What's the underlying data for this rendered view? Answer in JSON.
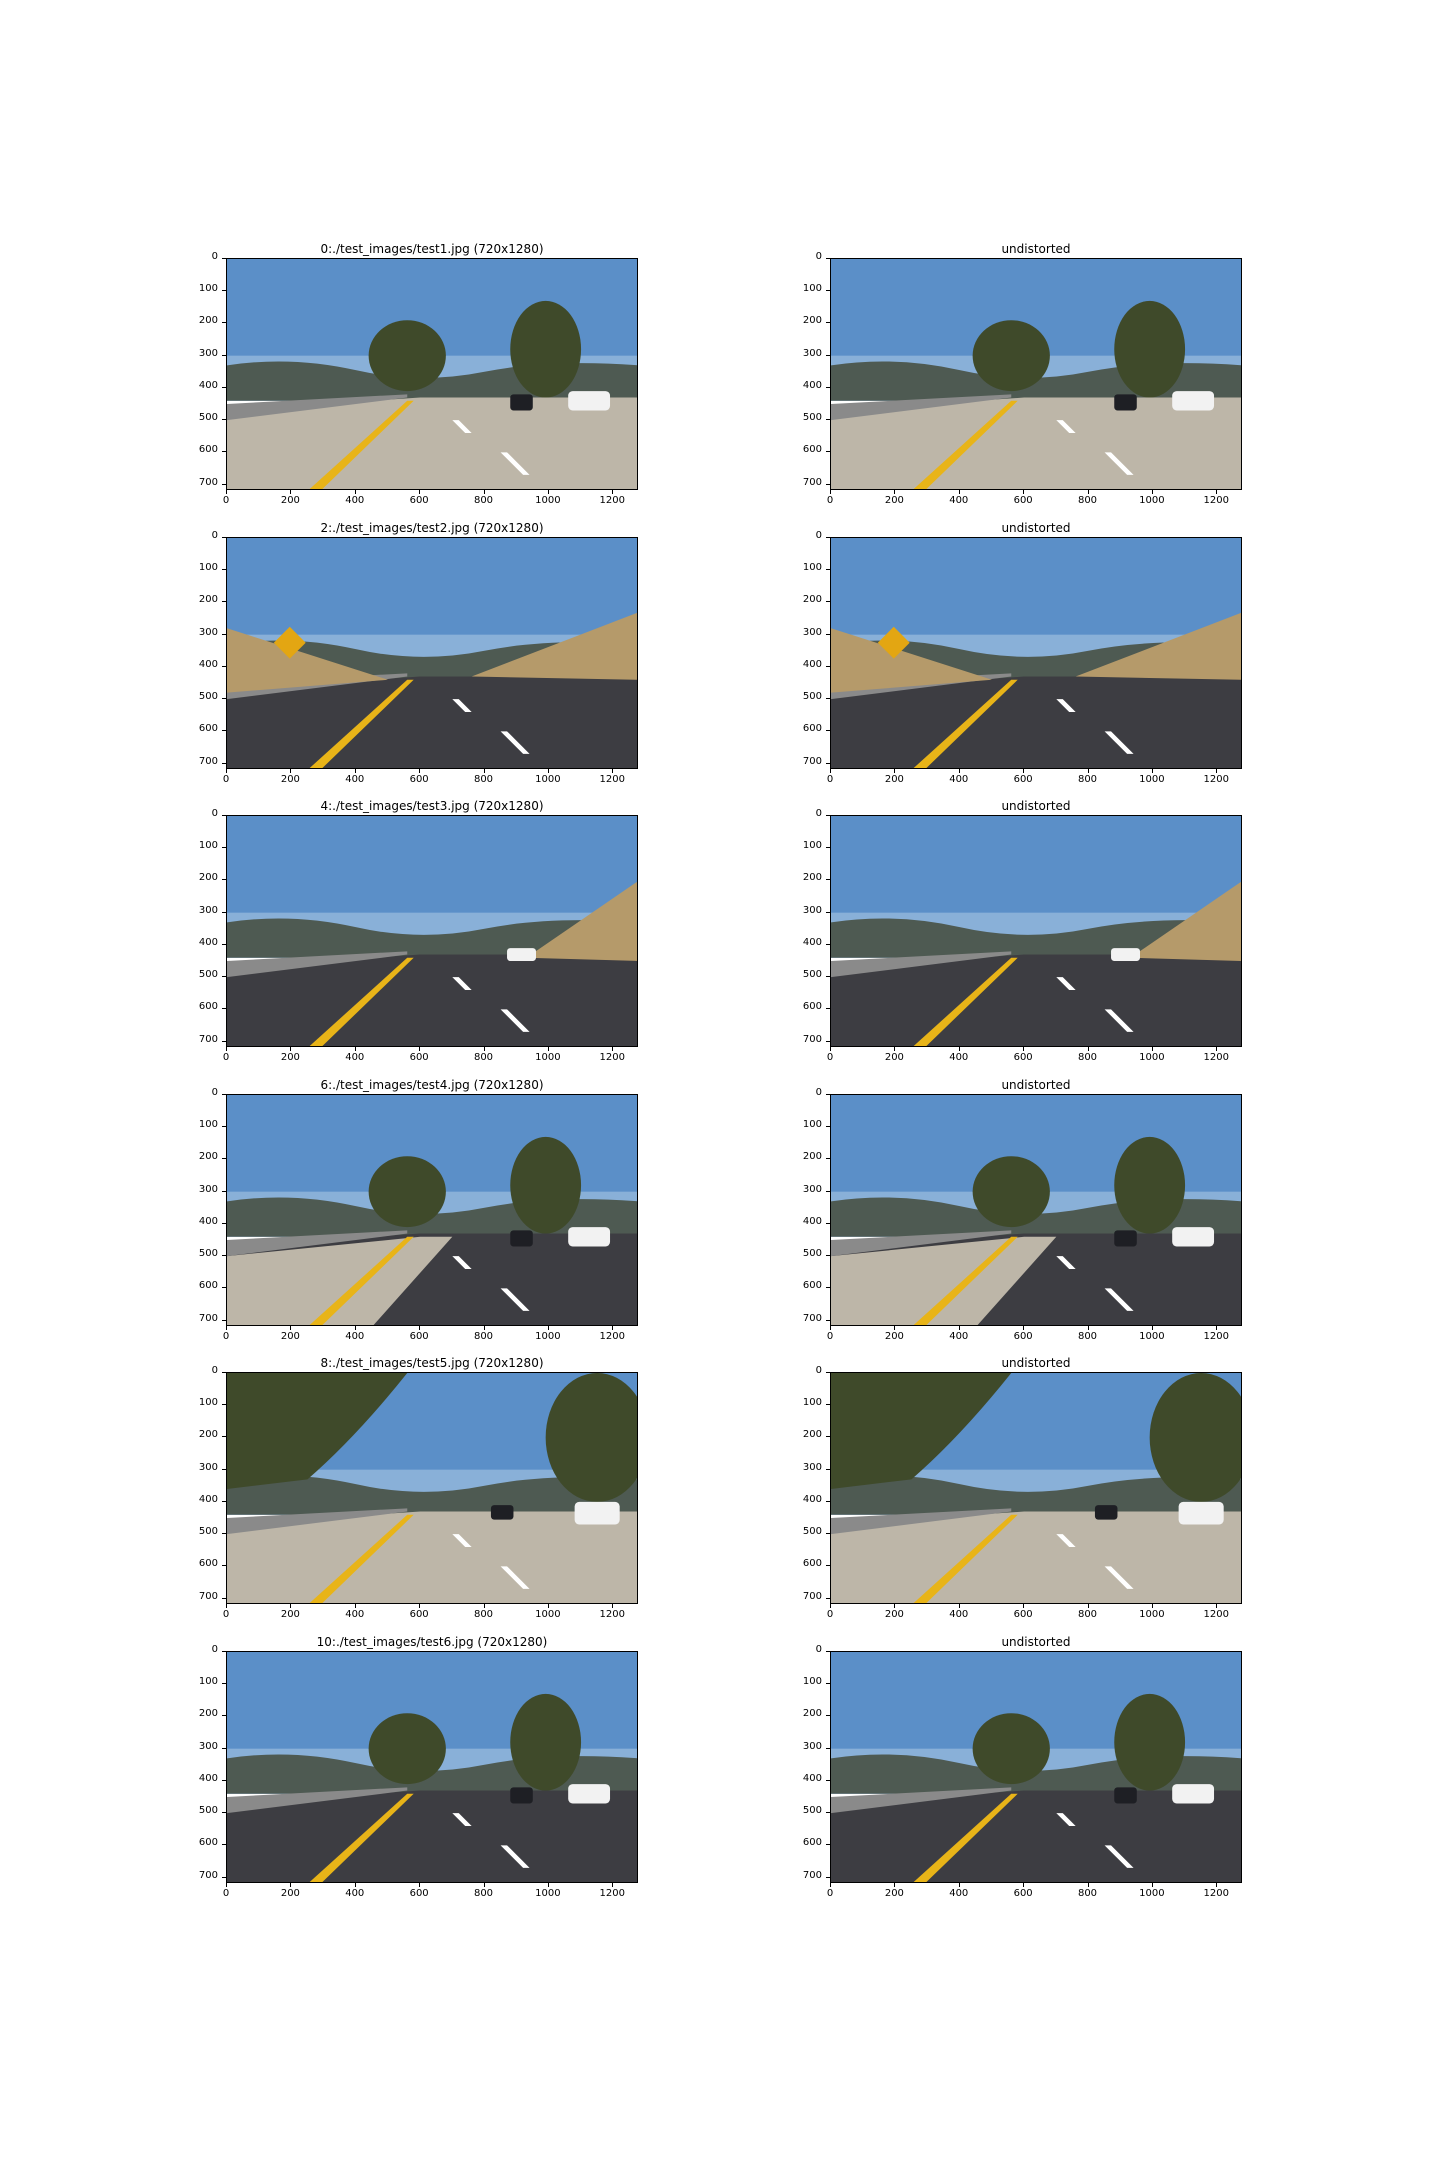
{
  "figure": {
    "panels": [
      {
        "title": "0:./test_images/test1.jpg (720x1280)",
        "scene": "test1"
      },
      {
        "title": "undistorted",
        "scene": "test1"
      },
      {
        "title": "2:./test_images/test2.jpg (720x1280)",
        "scene": "test2"
      },
      {
        "title": "undistorted",
        "scene": "test2"
      },
      {
        "title": "4:./test_images/test3.jpg (720x1280)",
        "scene": "test3"
      },
      {
        "title": "undistorted",
        "scene": "test3"
      },
      {
        "title": "6:./test_images/test4.jpg (720x1280)",
        "scene": "test4"
      },
      {
        "title": "undistorted",
        "scene": "test4"
      },
      {
        "title": "8:./test_images/test5.jpg (720x1280)",
        "scene": "test5"
      },
      {
        "title": "undistorted",
        "scene": "test5"
      },
      {
        "title": "10:./test_images/test6.jpg (720x1280)",
        "scene": "test6"
      },
      {
        "title": "undistorted",
        "scene": "test6"
      }
    ],
    "y_ticks": [
      "0",
      "100",
      "200",
      "300",
      "400",
      "500",
      "600",
      "700"
    ],
    "x_ticks": [
      "0",
      "200",
      "400",
      "600",
      "800",
      "1000",
      "1200"
    ],
    "colors": {
      "sky": "#5b8fc8",
      "sky_horizon": "#a9c6e2",
      "hills": "#4e5a52",
      "tree": "#3f4a2a",
      "road_light": "#bdb6a8",
      "road_dark": "#3d3d42",
      "yellow_line": "#e8b418",
      "white_line": "#ffffff",
      "dry_grass": "#b59a6a",
      "barrier": "#8a8a8a",
      "car_dark": "#1e1f24",
      "car_white": "#f2f2f2",
      "sign": "#e3a612"
    }
  }
}
